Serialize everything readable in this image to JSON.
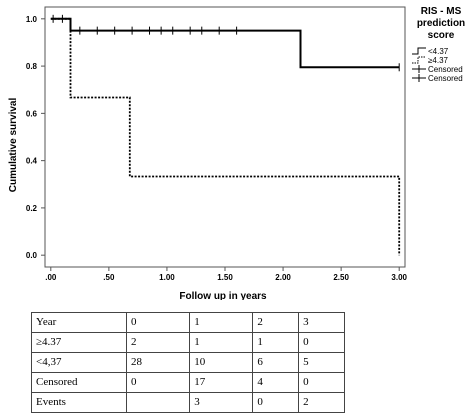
{
  "chart_data": {
    "type": "line",
    "subtype": "kaplan-meier",
    "xlabel": "Follow up in years",
    "ylabel": "Cumulative survival",
    "xlim": [
      -0.05,
      3.05
    ],
    "ylim": [
      -0.05,
      1.05
    ],
    "x_ticks": [
      ".00",
      ".50",
      "1.00",
      "1.50",
      "2.00",
      "2.50",
      "3.00"
    ],
    "x_tick_values": [
      0,
      0.5,
      1.0,
      1.5,
      2.0,
      2.5,
      3.0
    ],
    "y_ticks": [
      "0.0",
      "0.2",
      "0.4",
      "0.6",
      "0.8",
      "1.0"
    ],
    "y_tick_values": [
      0,
      0.2,
      0.4,
      0.6,
      0.8,
      1.0
    ],
    "grid": false,
    "legend": {
      "title_lines": [
        "RIS - MS",
        "prediction",
        "score"
      ],
      "placement": "top-right",
      "entries": [
        {
          "label": "<4.37",
          "style": "solid-step"
        },
        {
          "label": "≥4.37",
          "style": "dotted-step"
        },
        {
          "label": "Censored",
          "style": "censor"
        },
        {
          "label": "Censored",
          "style": "censor"
        }
      ]
    },
    "series": [
      {
        "name": "<4.37",
        "style": "solid",
        "color": "#000000",
        "steps": [
          [
            0,
            1.0
          ],
          [
            0.17,
            1.0
          ],
          [
            0.17,
            0.95
          ],
          [
            2.15,
            0.95
          ],
          [
            2.15,
            0.795
          ],
          [
            3.0,
            0.795
          ]
        ],
        "censored": [
          [
            0.02,
            1.0
          ],
          [
            0.1,
            1.0
          ],
          [
            0.25,
            0.95
          ],
          [
            0.4,
            0.95
          ],
          [
            0.55,
            0.95
          ],
          [
            0.7,
            0.95
          ],
          [
            0.85,
            0.95
          ],
          [
            0.95,
            0.95
          ],
          [
            1.05,
            0.95
          ],
          [
            1.2,
            0.95
          ],
          [
            1.3,
            0.95
          ],
          [
            1.45,
            0.95
          ],
          [
            1.6,
            0.95
          ],
          [
            3.0,
            0.795
          ]
        ]
      },
      {
        "name": "≥4.37",
        "style": "dotted",
        "color": "#000000",
        "steps": [
          [
            0,
            1.0
          ],
          [
            0.17,
            1.0
          ],
          [
            0.17,
            0.667
          ],
          [
            0.68,
            0.667
          ],
          [
            0.68,
            0.333
          ],
          [
            3.0,
            0.333
          ],
          [
            3.0,
            0.0
          ]
        ],
        "censored": []
      }
    ]
  },
  "risk_table": {
    "rows": [
      [
        "Year",
        "0",
        "1",
        "2",
        "3"
      ],
      [
        "≥4.37",
        "2",
        "1",
        "1",
        "0"
      ],
      [
        "<4,37",
        "28",
        "10",
        "6",
        "5"
      ],
      [
        "Censored",
        "0",
        "17",
        "4",
        "0"
      ],
      [
        "Events",
        "",
        "3",
        "0",
        "2"
      ]
    ]
  }
}
